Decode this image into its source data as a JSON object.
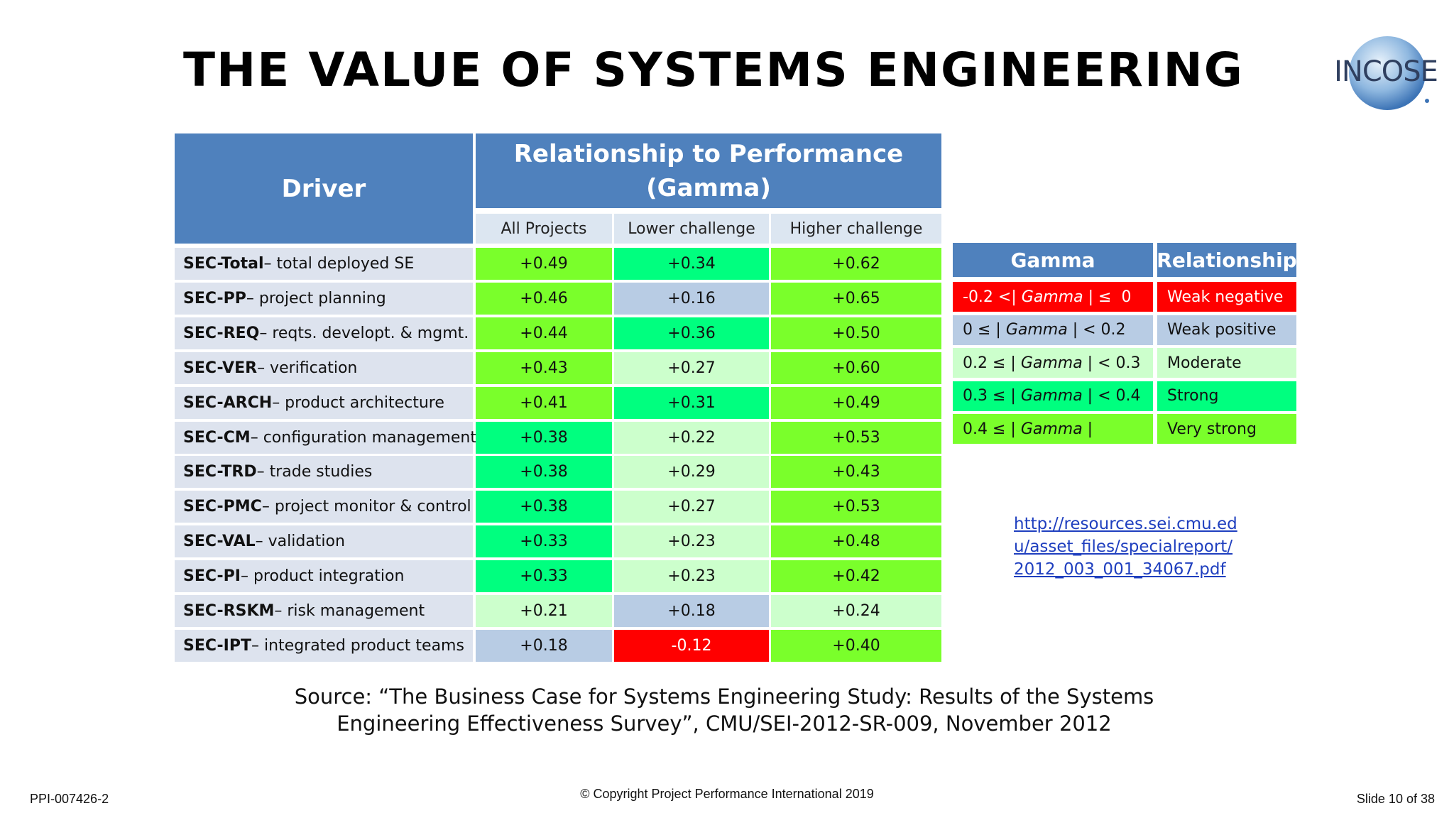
{
  "title": "THE VALUE OF SYSTEMS ENGINEERING",
  "logo_text": "INCOSE",
  "colors": {
    "header_blue": "#4f81bd",
    "very_strong": "#7aff2b",
    "strong": "#00ff7f",
    "moderate": "#ccffcc",
    "weak_positive": "#b8cce4",
    "weak_negative": "#ff0000"
  },
  "table": {
    "driver_header": "Driver",
    "perf_header_line1": "Relationship to Performance",
    "perf_header_line2": "(Gamma)",
    "columns": [
      "All Projects",
      "Lower challenge",
      "Higher challenge"
    ],
    "rows": [
      {
        "code": "SEC-Total",
        "desc": " – total deployed SE",
        "values": [
          "+0.49",
          "+0.34",
          "+0.62"
        ],
        "levels": [
          "very_strong",
          "strong",
          "very_strong"
        ]
      },
      {
        "code": "SEC-PP",
        "desc": " – project planning",
        "values": [
          "+0.46",
          "+0.16",
          "+0.65"
        ],
        "levels": [
          "very_strong",
          "weak_positive",
          "very_strong"
        ]
      },
      {
        "code": "SEC-REQ",
        "desc": " – reqts. developt. & mgmt.",
        "values": [
          "+0.44",
          "+0.36",
          "+0.50"
        ],
        "levels": [
          "very_strong",
          "strong",
          "very_strong"
        ]
      },
      {
        "code": "SEC-VER",
        "desc": " – verification",
        "values": [
          "+0.43",
          "+0.27",
          "+0.60"
        ],
        "levels": [
          "very_strong",
          "moderate",
          "very_strong"
        ]
      },
      {
        "code": "SEC-ARCH",
        "desc": " – product architecture",
        "values": [
          "+0.41",
          "+0.31",
          "+0.49"
        ],
        "levels": [
          "very_strong",
          "strong",
          "very_strong"
        ]
      },
      {
        "code": "SEC-CM",
        "desc": " – configuration management",
        "values": [
          "+0.38",
          "+0.22",
          "+0.53"
        ],
        "levels": [
          "strong",
          "moderate",
          "very_strong"
        ]
      },
      {
        "code": "SEC-TRD",
        "desc": " – trade studies",
        "values": [
          "+0.38",
          "+0.29",
          "+0.43"
        ],
        "levels": [
          "strong",
          "moderate",
          "very_strong"
        ]
      },
      {
        "code": "SEC-PMC",
        "desc": " – project monitor & control",
        "values": [
          "+0.38",
          "+0.27",
          "+0.53"
        ],
        "levels": [
          "strong",
          "moderate",
          "very_strong"
        ]
      },
      {
        "code": "SEC-VAL",
        "desc": " – validation",
        "values": [
          "+0.33",
          "+0.23",
          "+0.48"
        ],
        "levels": [
          "strong",
          "moderate",
          "very_strong"
        ]
      },
      {
        "code": "SEC-PI",
        "desc": " – product integration",
        "values": [
          "+0.33",
          "+0.23",
          "+0.42"
        ],
        "levels": [
          "strong",
          "moderate",
          "very_strong"
        ]
      },
      {
        "code": "SEC-RSKM",
        "desc": " – risk management",
        "values": [
          "+0.21",
          "+0.18",
          "+0.24"
        ],
        "levels": [
          "moderate",
          "weak_positive",
          "moderate"
        ]
      },
      {
        "code": "SEC-IPT",
        "desc": " – integrated product teams",
        "values": [
          "+0.18",
          "-0.12",
          "+0.40"
        ],
        "levels": [
          "weak_positive",
          "weak_negative",
          "very_strong"
        ]
      }
    ]
  },
  "legend": {
    "gamma_header": "Gamma",
    "relationship_header": "Relationship",
    "rows": [
      {
        "pre": "-0.2 <| ",
        "gamma": "Gamma",
        "post": " | ≤  0",
        "label": "Weak negative",
        "level": "weak_negative"
      },
      {
        "pre": "0 ≤ | ",
        "gamma": "Gamma",
        "post": " | < 0.2",
        "label": "Weak positive",
        "level": "weak_positive"
      },
      {
        "pre": "0.2 ≤ | ",
        "gamma": "Gamma",
        "post": " | < 0.3",
        "label": "Moderate",
        "level": "moderate"
      },
      {
        "pre": "0.3 ≤ | ",
        "gamma": "Gamma",
        "post": " | < 0.4",
        "label": "Strong",
        "level": "strong"
      },
      {
        "pre": "0.4 ≤ | ",
        "gamma": "Gamma",
        "post": " |",
        "label": "Very strong",
        "level": "very_strong"
      }
    ]
  },
  "link": "http://resources.sei.cmu.edu/asset_files/specialreport/2012_003_001_34067.pdf",
  "source_line1": "Source: “The Business Case for Systems Engineering Study: Results of the Systems",
  "source_line2": "Engineering Effectiveness Survey”, CMU/SEI-2012-SR-009, November 2012",
  "footer": {
    "doc_id": "PPI-007426-2",
    "copyright": "© Copyright Project Performance International 2019",
    "slide": "Slide 10 of 38"
  }
}
